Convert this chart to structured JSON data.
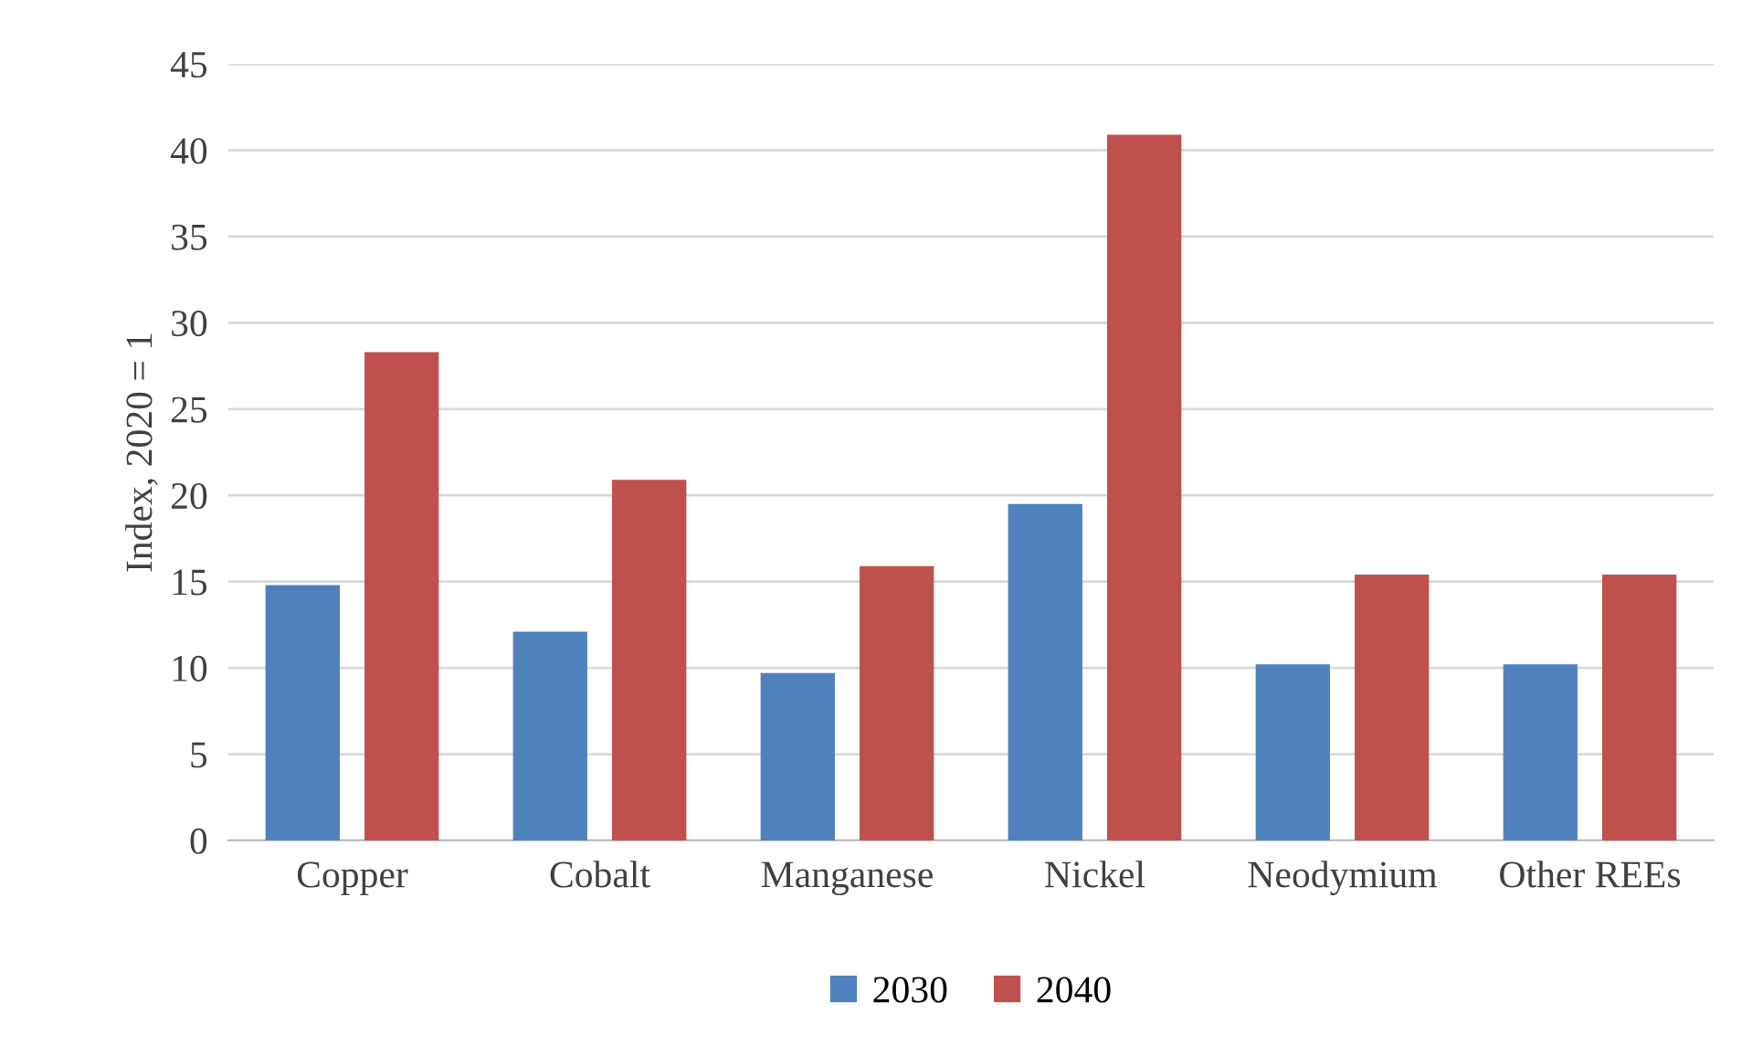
{
  "chart_data": {
    "type": "bar",
    "ylabel": "Index, 2020 = 1",
    "categories": [
      "Copper",
      "Cobalt",
      "Manganese",
      "Nickel",
      "Neodymium",
      "Other REEs"
    ],
    "series": [
      {
        "name": "2030",
        "color": "#4f81bd",
        "values": [
          14.8,
          12.1,
          9.7,
          19.5,
          10.2,
          10.2
        ]
      },
      {
        "name": "2040",
        "color": "#c0504d",
        "values": [
          28.3,
          20.9,
          15.9,
          40.9,
          15.4,
          15.4
        ]
      }
    ],
    "ylim": [
      0,
      45
    ],
    "yticks": [
      0,
      5,
      10,
      15,
      20,
      25,
      30,
      35,
      40,
      45
    ],
    "grid": "y",
    "legend": "bottom"
  }
}
